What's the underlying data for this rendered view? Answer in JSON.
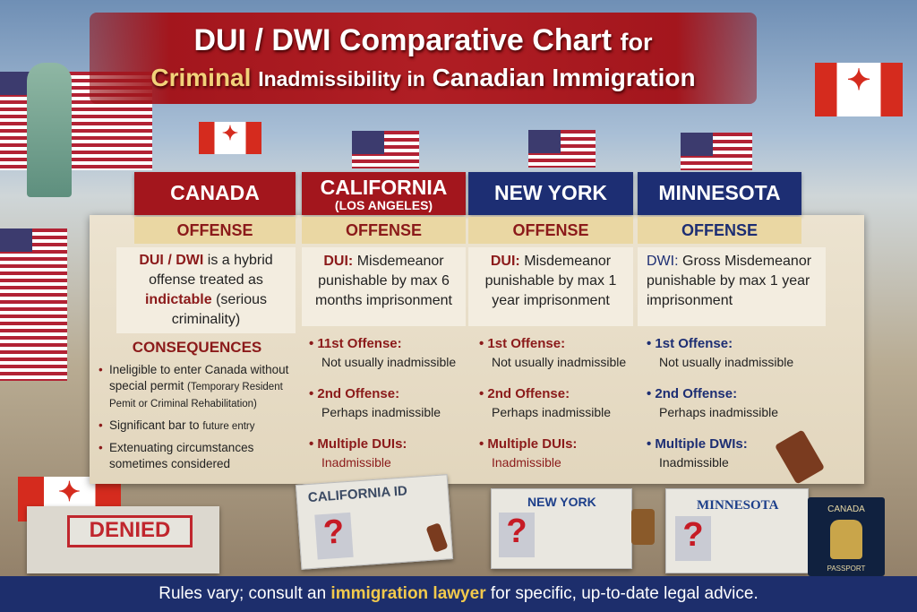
{
  "title": {
    "line1_main": "DUI / DWI Comparative Chart",
    "line1_suffix": "for",
    "line2_highlight": "Criminal",
    "line2_mid": "Inadmissibility in",
    "line2_end": "Canadian Immigration"
  },
  "colors": {
    "canada_red": "#a3161d",
    "us_blue": "#1d2e73",
    "footer_navy": "#1d2e6c",
    "highlight_gold": "#f2c94c"
  },
  "columns": [
    {
      "name": "CANADA",
      "subtitle": "",
      "offense_label": "OFFENSE",
      "offense": {
        "b1": "DUI / DWI",
        "t1": " is a hybrid offense treated as ",
        "b2": "indictable",
        "t2": " (serious criminality)"
      },
      "consequences_title": "CONSEQUENCES",
      "consequences": [
        {
          "main": "Ineligible to enter Canada without special permit",
          "small": "(Temporary Resident Pemit or Criminal Rehabilitation)"
        },
        {
          "main": "Significant bar to",
          "small": "future entry"
        },
        {
          "main": "Extenuating circumstances sometimes considered",
          "small": ""
        }
      ]
    },
    {
      "name": "CALIFORNIA",
      "subtitle": "(LOS ANGELES)",
      "offense_label": "OFFENSE",
      "offense": {
        "b1": "DUI:",
        "t1": " Misdemeanor punishable by max 6 months imprisonment"
      },
      "items": [
        {
          "h": "11st Offense:",
          "t": "Not usually inadmissible"
        },
        {
          "h": "2nd Offense:",
          "t": "Perhaps inadmissible"
        },
        {
          "h": "Multiple DUIs:",
          "t": "Inadmissible"
        }
      ]
    },
    {
      "name": "NEW YORK",
      "subtitle": "",
      "offense_label": "OFFENSE",
      "offense": {
        "b1": "DUI:",
        "t1": " Misdemeanor punishable by max 1 year imprisonment"
      },
      "items": [
        {
          "h": "1st Offense:",
          "t": "Not usually inadmissible"
        },
        {
          "h": "2nd Offense:",
          "t": "Perhaps inadmissible"
        },
        {
          "h": "Multiple DUIs:",
          "t": "Inadmissible"
        }
      ]
    },
    {
      "name": "MINNESOTA",
      "subtitle": "",
      "offense_label": "OFFENSE",
      "offense": {
        "b1": "DWI:",
        "t1": " Gross Misdemeanor punishable by max 1 year imprisonment"
      },
      "items": [
        {
          "h": "1st Offense:",
          "t": "Not usually inadmissible"
        },
        {
          "h": "2nd Offense:",
          "t": "Perhaps inadmissible"
        },
        {
          "h": "Multiple DWIs:",
          "t": "Inadmissible"
        }
      ]
    }
  ],
  "props": {
    "denied_stamp": "DENIED",
    "california_card": "CALIFORNIA ID",
    "newyork_card": "NEW YORK",
    "minnesota_card": "MINNESOTA",
    "passport_country": "CANADA",
    "passport_label": "PASSPORT",
    "question_mark": "?"
  },
  "footer": {
    "pre": "Rules vary; consult an ",
    "highlight": "immigration lawyer",
    "post": " for specific, up-to-date legal advice."
  }
}
